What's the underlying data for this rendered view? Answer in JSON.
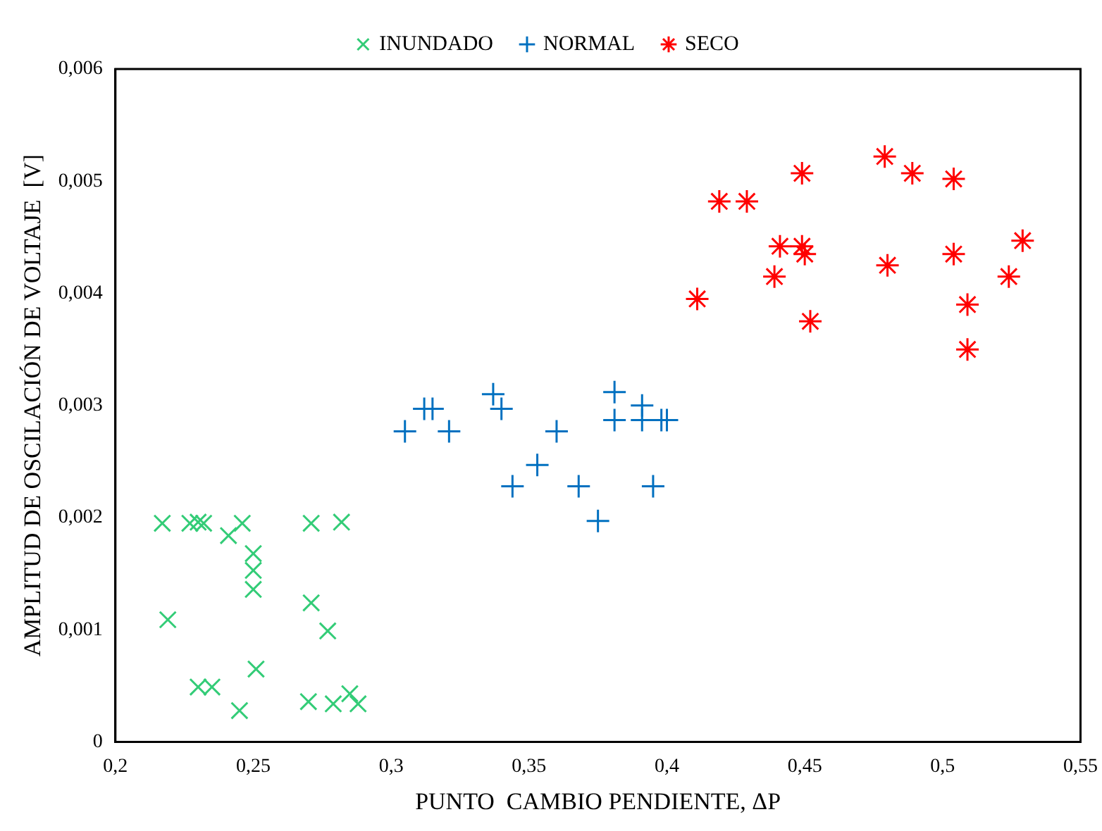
{
  "chart_data": {
    "type": "scatter",
    "xlabel": "PUNTO  CAMBIO PENDIENTE, ΔP",
    "ylabel": "AMPLITUD DE OSCILACIÓN DE VOLTAJE  [V]",
    "legend": "top",
    "grid": false,
    "xlim": [
      0.2,
      0.55
    ],
    "xticks": [
      {
        "value": 0.2,
        "label": "0,2"
      },
      {
        "value": 0.25,
        "label": "0,25"
      },
      {
        "value": 0.3,
        "label": "0,3"
      },
      {
        "value": 0.35,
        "label": "0,35"
      },
      {
        "value": 0.4,
        "label": "0,4"
      },
      {
        "value": 0.45,
        "label": "0,45"
      },
      {
        "value": 0.5,
        "label": "0,5"
      },
      {
        "value": 0.55,
        "label": "0,55"
      }
    ],
    "ylim": [
      0,
      0.006
    ],
    "yticks": [
      {
        "value": 0,
        "label": "0"
      },
      {
        "value": 0.001,
        "label": "0,001"
      },
      {
        "value": 0.002,
        "label": "0,002"
      },
      {
        "value": 0.003,
        "label": "0,003"
      },
      {
        "value": 0.004,
        "label": "0,004"
      },
      {
        "value": 0.005,
        "label": "0,005"
      },
      {
        "value": 0.006,
        "label": "0,006"
      }
    ],
    "series": [
      {
        "name": "INUNDADO",
        "color": "#33cc77",
        "marker": "x",
        "x": [
          0.217,
          0.227,
          0.23,
          0.232,
          0.241,
          0.246,
          0.25,
          0.25,
          0.25,
          0.219,
          0.271,
          0.282,
          0.271,
          0.277,
          0.251,
          0.23,
          0.235,
          0.245,
          0.27,
          0.279,
          0.285,
          0.288
        ],
        "values": [
          0.00195,
          0.00195,
          0.00196,
          0.00195,
          0.00184,
          0.00195,
          0.00168,
          0.00153,
          0.00136,
          0.00109,
          0.00195,
          0.00196,
          0.00124,
          0.00099,
          0.00065,
          0.00049,
          0.00049,
          0.00028,
          0.00036,
          0.00034,
          0.00043,
          0.00034
        ]
      },
      {
        "name": "NORMAL",
        "color": "#0070c0",
        "marker": "plus",
        "x": [
          0.305,
          0.312,
          0.315,
          0.321,
          0.337,
          0.34,
          0.344,
          0.353,
          0.36,
          0.368,
          0.375,
          0.381,
          0.381,
          0.391,
          0.391,
          0.398,
          0.4,
          0.395
        ],
        "values": [
          0.00277,
          0.00297,
          0.00297,
          0.00277,
          0.0031,
          0.00297,
          0.00228,
          0.00247,
          0.00277,
          0.00228,
          0.00197,
          0.00312,
          0.00287,
          0.003,
          0.00287,
          0.00287,
          0.00287,
          0.00228
        ]
      },
      {
        "name": "SECO",
        "color": "#ff0000",
        "marker": "cross",
        "x": [
          0.411,
          0.419,
          0.429,
          0.449,
          0.441,
          0.439,
          0.449,
          0.45,
          0.452,
          0.479,
          0.489,
          0.504,
          0.48,
          0.504,
          0.509,
          0.509,
          0.524,
          0.529
        ],
        "values": [
          0.00395,
          0.00482,
          0.00482,
          0.00507,
          0.00442,
          0.00415,
          0.00442,
          0.00435,
          0.00375,
          0.00522,
          0.00507,
          0.00502,
          0.00425,
          0.00435,
          0.0039,
          0.0035,
          0.00415,
          0.00447
        ]
      }
    ]
  }
}
